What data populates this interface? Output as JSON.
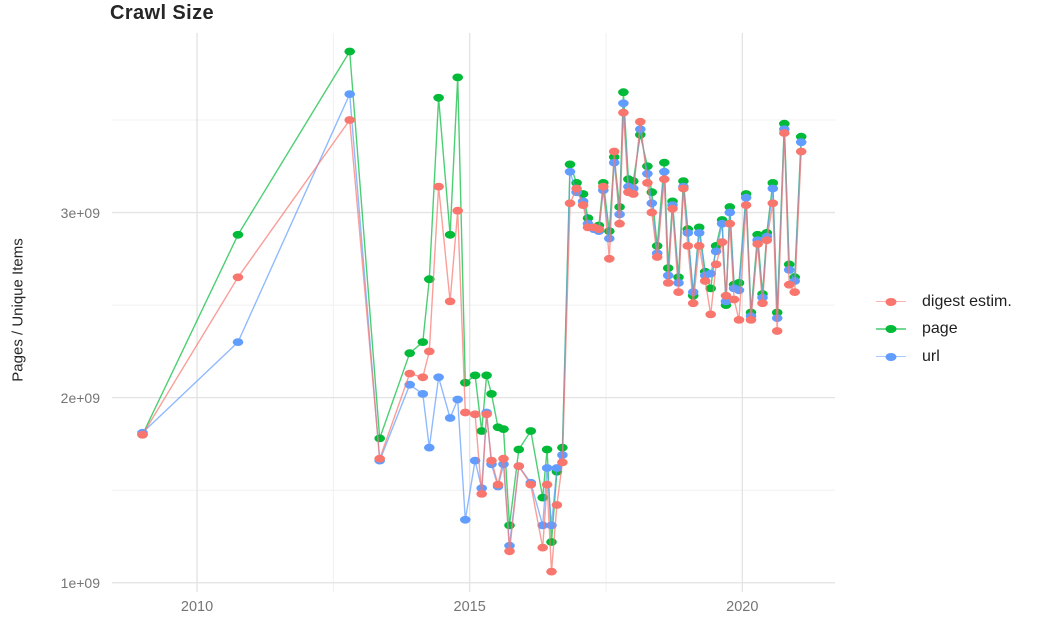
{
  "chart_data": {
    "type": "line",
    "title": "Crawl Size",
    "xlabel": "",
    "ylabel": "Pages / Unique Items",
    "x_unit": "year (decimal)",
    "y_unit": "billions of pages / unique items (1e9)",
    "grid": true,
    "legend_position": "right",
    "x_range": [
      2008.44,
      2021.7
    ],
    "y_range": [
      0.95,
      3.97
    ],
    "x_ticks": {
      "values": [
        2010,
        2015,
        2020
      ],
      "labels": [
        "2010",
        "2015",
        "2020"
      ],
      "minor": [
        2012.5,
        2017.5
      ]
    },
    "y_ticks": {
      "values": [
        1,
        2,
        3
      ],
      "labels": [
        "1e+09",
        "2e+09",
        "3e+09"
      ],
      "minor": [
        1.5,
        2.5,
        3.5
      ]
    },
    "draw_order": [
      "page",
      "url",
      "digest estim."
    ],
    "x": [
      2009.0,
      2010.75,
      2012.8,
      2013.35,
      2013.9,
      2014.14,
      2014.26,
      2014.43,
      2014.64,
      2014.78,
      2014.92,
      2015.1,
      2015.22,
      2015.31,
      2015.4,
      2015.52,
      2015.62,
      2015.73,
      2015.9,
      2016.12,
      2016.34,
      2016.42,
      2016.5,
      2016.6,
      2016.7,
      2016.84,
      2016.96,
      2017.08,
      2017.17,
      2017.28,
      2017.37,
      2017.45,
      2017.56,
      2017.65,
      2017.75,
      2017.82,
      2017.91,
      2018.0,
      2018.13,
      2018.26,
      2018.34,
      2018.44,
      2018.57,
      2018.64,
      2018.72,
      2018.83,
      2018.92,
      2019.0,
      2019.1,
      2019.21,
      2019.32,
      2019.42,
      2019.52,
      2019.63,
      2019.7,
      2019.77,
      2019.85,
      2019.94,
      2020.07,
      2020.16,
      2020.28,
      2020.37,
      2020.45,
      2020.56,
      2020.64,
      2020.77,
      2020.86,
      2020.96,
      2021.08
    ],
    "series": [
      {
        "name": "digest estim.",
        "color": "#F8766D",
        "values": [
          1.8,
          2.65,
          3.5,
          1.67,
          2.13,
          2.11,
          2.25,
          3.14,
          2.52,
          3.01,
          1.92,
          1.91,
          1.48,
          1.91,
          1.66,
          1.53,
          1.67,
          1.17,
          1.63,
          1.53,
          1.19,
          1.53,
          1.06,
          1.42,
          1.65,
          3.05,
          3.13,
          3.04,
          2.92,
          2.92,
          2.91,
          3.14,
          2.75,
          3.33,
          2.94,
          3.54,
          3.11,
          3.1,
          3.49,
          3.16,
          3.0,
          2.76,
          3.18,
          2.62,
          3.02,
          2.57,
          3.13,
          2.82,
          2.51,
          2.82,
          2.63,
          2.45,
          2.72,
          2.84,
          2.55,
          2.94,
          2.53,
          2.42,
          3.04,
          2.42,
          2.83,
          2.51,
          2.85,
          3.05,
          2.36,
          3.43,
          2.61,
          2.57,
          3.33
        ]
      },
      {
        "name": "page",
        "color": "#00BA38",
        "values": [
          1.8,
          2.88,
          3.87,
          1.78,
          2.24,
          2.3,
          2.64,
          3.62,
          2.88,
          3.73,
          2.08,
          2.12,
          1.82,
          2.12,
          2.02,
          1.84,
          1.83,
          1.31,
          1.72,
          1.82,
          1.46,
          1.72,
          1.22,
          1.6,
          1.73,
          3.26,
          3.16,
          3.1,
          2.97,
          2.92,
          2.93,
          3.16,
          2.9,
          3.3,
          3.03,
          3.65,
          3.18,
          3.17,
          3.42,
          3.25,
          3.11,
          2.82,
          3.27,
          2.7,
          3.06,
          2.65,
          3.17,
          2.91,
          2.55,
          2.92,
          2.68,
          2.59,
          2.82,
          2.96,
          2.5,
          3.03,
          2.61,
          2.62,
          3.1,
          2.46,
          2.88,
          2.56,
          2.89,
          3.16,
          2.46,
          3.48,
          2.72,
          2.65,
          3.41
        ]
      },
      {
        "name": "url",
        "color": "#619CFF",
        "values": [
          1.81,
          2.3,
          3.64,
          1.66,
          2.07,
          2.02,
          1.73,
          2.11,
          1.89,
          1.99,
          1.34,
          1.66,
          1.51,
          1.92,
          1.64,
          1.52,
          1.64,
          1.2,
          1.63,
          1.54,
          1.31,
          1.62,
          1.31,
          1.62,
          1.69,
          3.22,
          3.11,
          3.06,
          2.94,
          2.91,
          2.9,
          3.12,
          2.86,
          3.27,
          2.99,
          3.59,
          3.14,
          3.13,
          3.45,
          3.21,
          3.05,
          2.78,
          3.22,
          2.66,
          3.04,
          2.62,
          3.14,
          2.89,
          2.57,
          2.89,
          2.66,
          2.67,
          2.79,
          2.94,
          2.52,
          3.0,
          2.59,
          2.58,
          3.08,
          2.44,
          2.85,
          2.54,
          2.87,
          3.13,
          2.43,
          3.45,
          2.69,
          2.63,
          3.38
        ]
      }
    ],
    "style": {
      "grid_major_color": "#E3E3E3",
      "grid_minor_color": "#F0F0F0",
      "background": "#FFFFFF",
      "tick_label_color": "#757575",
      "title_color": "#262626"
    }
  }
}
